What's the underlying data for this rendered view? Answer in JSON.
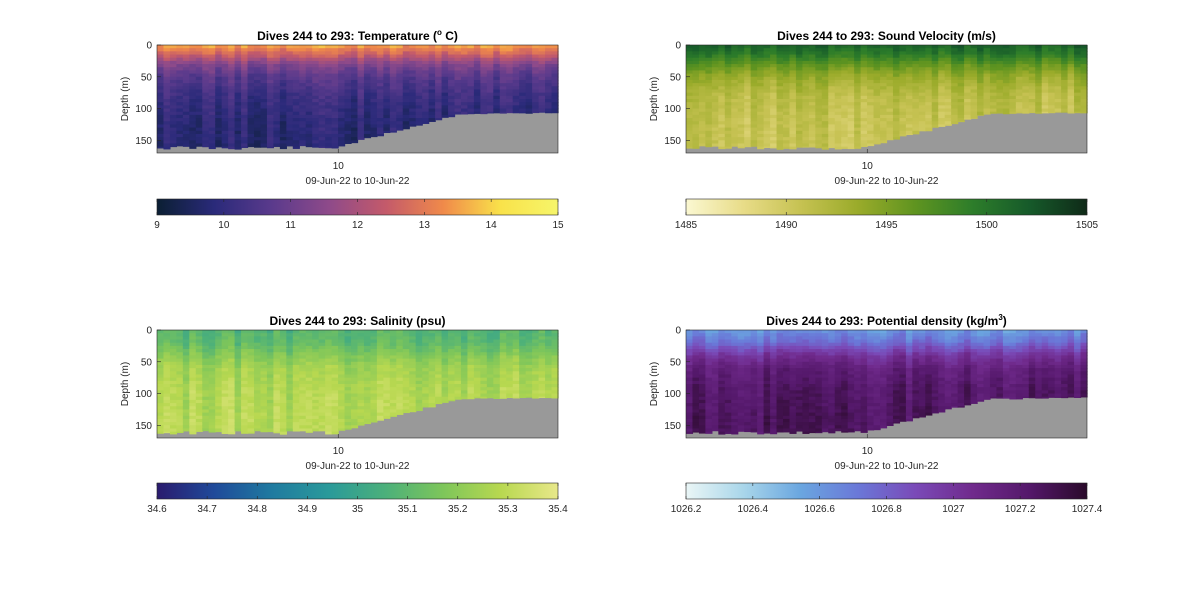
{
  "chart_data": [
    {
      "type": "heatmap",
      "title": "Dives 244 to 293: Temperature (° C)",
      "title_prefix": "Dives 244 to 293: Temperature (",
      "title_sup": "o",
      "title_suffix": " C)",
      "ylabel": "Depth (m)",
      "xlabel": "09-Jun-22 to 10-Jun-22",
      "x_ticks": [
        "10"
      ],
      "y_ticks": [
        0,
        50,
        100,
        150
      ],
      "ylim": [
        0,
        170
      ],
      "y_reversed": true,
      "dives": [
        244,
        293
      ],
      "colorbar": {
        "min": 9,
        "max": 15,
        "ticks": [
          "9",
          "10",
          "11",
          "12",
          "13",
          "14",
          "15"
        ],
        "colors": [
          "#0b1f33",
          "#2a2a7a",
          "#5a3a8c",
          "#8e4a8a",
          "#c45a6a",
          "#f08a4a",
          "#f9e24a",
          "#f6f56a"
        ]
      },
      "surface_value": 13.5,
      "deep_value": 10.0,
      "profile": [
        [
          0,
          13.6
        ],
        [
          15,
          12.6
        ],
        [
          30,
          11.4
        ],
        [
          50,
          10.7
        ],
        [
          80,
          10.2
        ],
        [
          120,
          9.9
        ],
        [
          170,
          9.8
        ]
      ]
    },
    {
      "type": "heatmap",
      "title": "Dives 244 to 293: Sound Velocity (m/s)",
      "ylabel": "Depth (m)",
      "xlabel": "09-Jun-22 to 10-Jun-22",
      "x_ticks": [
        "10"
      ],
      "y_ticks": [
        0,
        50,
        100,
        150
      ],
      "ylim": [
        0,
        170
      ],
      "y_reversed": true,
      "dives": [
        244,
        293
      ],
      "colorbar": {
        "min": 1485,
        "max": 1505,
        "ticks": [
          "1485",
          "1490",
          "1495",
          "1500",
          "1505"
        ],
        "colors": [
          "#fbf8d2",
          "#e8dc88",
          "#c6c252",
          "#9aab2a",
          "#5f9420",
          "#2d7d2a",
          "#165a2a",
          "#0f2a18"
        ]
      },
      "profile": [
        [
          0,
          1501.5
        ],
        [
          15,
          1499.5
        ],
        [
          30,
          1496.5
        ],
        [
          50,
          1493.5
        ],
        [
          80,
          1491.5
        ],
        [
          120,
          1490.8
        ],
        [
          170,
          1490.5
        ]
      ]
    },
    {
      "type": "heatmap",
      "title": "Dives 244 to 293: Salinity (psu)",
      "ylabel": "Depth (m)",
      "xlabel": "09-Jun-22 to 10-Jun-22",
      "x_ticks": [
        "10"
      ],
      "y_ticks": [
        0,
        50,
        100,
        150
      ],
      "ylim": [
        0,
        170
      ],
      "y_reversed": true,
      "dives": [
        244,
        293
      ],
      "colorbar": {
        "min": 34.6,
        "max": 35.4,
        "ticks": [
          "34.6",
          "34.7",
          "34.8",
          "34.9",
          "35",
          "35.1",
          "35.2",
          "35.3",
          "35.4"
        ],
        "colors": [
          "#2a1b6e",
          "#1f4a9a",
          "#1f7aa0",
          "#2a9a9a",
          "#4cb07a",
          "#7ec65a",
          "#b8d850",
          "#e8e88a"
        ]
      },
      "profile": [
        [
          0,
          35.08
        ],
        [
          20,
          35.1
        ],
        [
          40,
          35.18
        ],
        [
          60,
          35.24
        ],
        [
          90,
          35.27
        ],
        [
          130,
          35.28
        ],
        [
          170,
          35.28
        ]
      ]
    },
    {
      "type": "heatmap",
      "title": "Dives 244 to 293: Potential density (kg/m³)",
      "title_prefix": "Dives 244 to 293: Potential density (kg/m",
      "title_sup": "3",
      "title_suffix": ")",
      "ylabel": "Depth (m)",
      "xlabel": "09-Jun-22 to 10-Jun-22",
      "x_ticks": [
        "10"
      ],
      "y_ticks": [
        0,
        50,
        100,
        150
      ],
      "ylim": [
        0,
        170
      ],
      "y_reversed": true,
      "dives": [
        244,
        293
      ],
      "colorbar": {
        "min": 1026.2,
        "max": 1027.4,
        "ticks": [
          "1026.2",
          "1026.4",
          "1026.6",
          "1026.8",
          "1027",
          "1027.2",
          "1027.4"
        ],
        "colors": [
          "#eaf6f6",
          "#a9d6ea",
          "#6aa6e0",
          "#6a78d8",
          "#7a4ab8",
          "#702a8c",
          "#54186a",
          "#2a0a2a"
        ]
      },
      "profile": [
        [
          0,
          1026.6
        ],
        [
          20,
          1026.75
        ],
        [
          40,
          1027.0
        ],
        [
          60,
          1027.15
        ],
        [
          90,
          1027.22
        ],
        [
          130,
          1027.25
        ],
        [
          170,
          1027.26
        ]
      ]
    }
  ]
}
